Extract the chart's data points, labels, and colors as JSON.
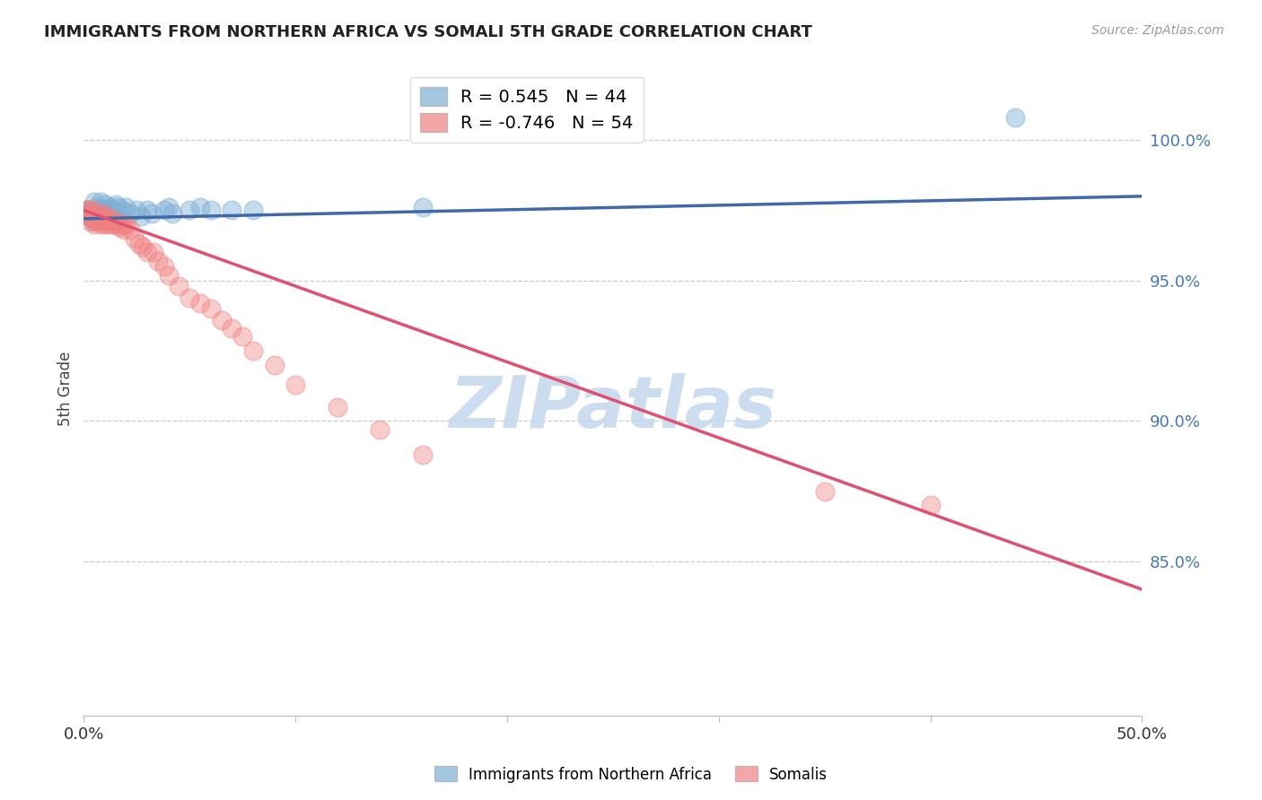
{
  "title": "IMMIGRANTS FROM NORTHERN AFRICA VS SOMALI 5TH GRADE CORRELATION CHART",
  "source": "Source: ZipAtlas.com",
  "ylabel": "5th Grade",
  "ytick_labels": [
    "100.0%",
    "95.0%",
    "90.0%",
    "85.0%"
  ],
  "ytick_values": [
    1.0,
    0.95,
    0.9,
    0.85
  ],
  "xlim": [
    0.0,
    0.5
  ],
  "ylim": [
    0.795,
    1.028
  ],
  "blue_r": 0.545,
  "blue_n": 44,
  "pink_r": -0.746,
  "pink_n": 54,
  "blue_color": "#7EB0D5",
  "pink_color": "#F08080",
  "blue_line_color": "#4169AA",
  "pink_line_color": "#E05070",
  "watermark": "ZIPatlas",
  "watermark_color": "#C5D8EE",
  "blue_scatter_x": [
    0.001,
    0.002,
    0.002,
    0.003,
    0.003,
    0.004,
    0.004,
    0.005,
    0.005,
    0.005,
    0.006,
    0.006,
    0.007,
    0.007,
    0.008,
    0.008,
    0.009,
    0.009,
    0.01,
    0.01,
    0.011,
    0.012,
    0.013,
    0.014,
    0.015,
    0.016,
    0.017,
    0.018,
    0.02,
    0.022,
    0.025,
    0.027,
    0.03,
    0.032,
    0.038,
    0.04,
    0.042,
    0.05,
    0.055,
    0.06,
    0.07,
    0.08,
    0.16,
    0.44
  ],
  "blue_scatter_y": [
    0.974,
    0.975,
    0.973,
    0.975,
    0.974,
    0.973,
    0.972,
    0.978,
    0.975,
    0.971,
    0.976,
    0.974,
    0.975,
    0.973,
    0.978,
    0.975,
    0.975,
    0.972,
    0.977,
    0.974,
    0.975,
    0.976,
    0.974,
    0.975,
    0.977,
    0.976,
    0.972,
    0.975,
    0.976,
    0.974,
    0.975,
    0.973,
    0.975,
    0.974,
    0.975,
    0.976,
    0.974,
    0.975,
    0.976,
    0.975,
    0.975,
    0.975,
    0.976,
    1.008
  ],
  "pink_scatter_x": [
    0.001,
    0.002,
    0.002,
    0.003,
    0.003,
    0.004,
    0.004,
    0.005,
    0.005,
    0.006,
    0.006,
    0.007,
    0.007,
    0.008,
    0.008,
    0.009,
    0.009,
    0.01,
    0.01,
    0.011,
    0.012,
    0.012,
    0.013,
    0.014,
    0.015,
    0.016,
    0.017,
    0.018,
    0.019,
    0.02,
    0.022,
    0.024,
    0.026,
    0.028,
    0.03,
    0.033,
    0.035,
    0.038,
    0.04,
    0.045,
    0.05,
    0.055,
    0.06,
    0.065,
    0.07,
    0.075,
    0.08,
    0.09,
    0.1,
    0.12,
    0.14,
    0.16,
    0.35,
    0.4
  ],
  "pink_scatter_y": [
    0.975,
    0.975,
    0.974,
    0.971,
    0.973,
    0.972,
    0.975,
    0.972,
    0.97,
    0.974,
    0.972,
    0.971,
    0.973,
    0.972,
    0.97,
    0.974,
    0.972,
    0.97,
    0.973,
    0.972,
    0.971,
    0.97,
    0.972,
    0.97,
    0.971,
    0.97,
    0.969,
    0.97,
    0.968,
    0.97,
    0.968,
    0.965,
    0.963,
    0.962,
    0.96,
    0.96,
    0.957,
    0.955,
    0.952,
    0.948,
    0.944,
    0.942,
    0.94,
    0.936,
    0.933,
    0.93,
    0.925,
    0.92,
    0.913,
    0.905,
    0.897,
    0.888,
    0.875,
    0.87
  ],
  "blue_line_x0": 0.0,
  "blue_line_x1": 0.5,
  "blue_line_y0": 0.972,
  "blue_line_y1": 0.98,
  "pink_line_x0": 0.0,
  "pink_line_x1": 0.5,
  "pink_line_y0": 0.975,
  "pink_line_y1": 0.84
}
